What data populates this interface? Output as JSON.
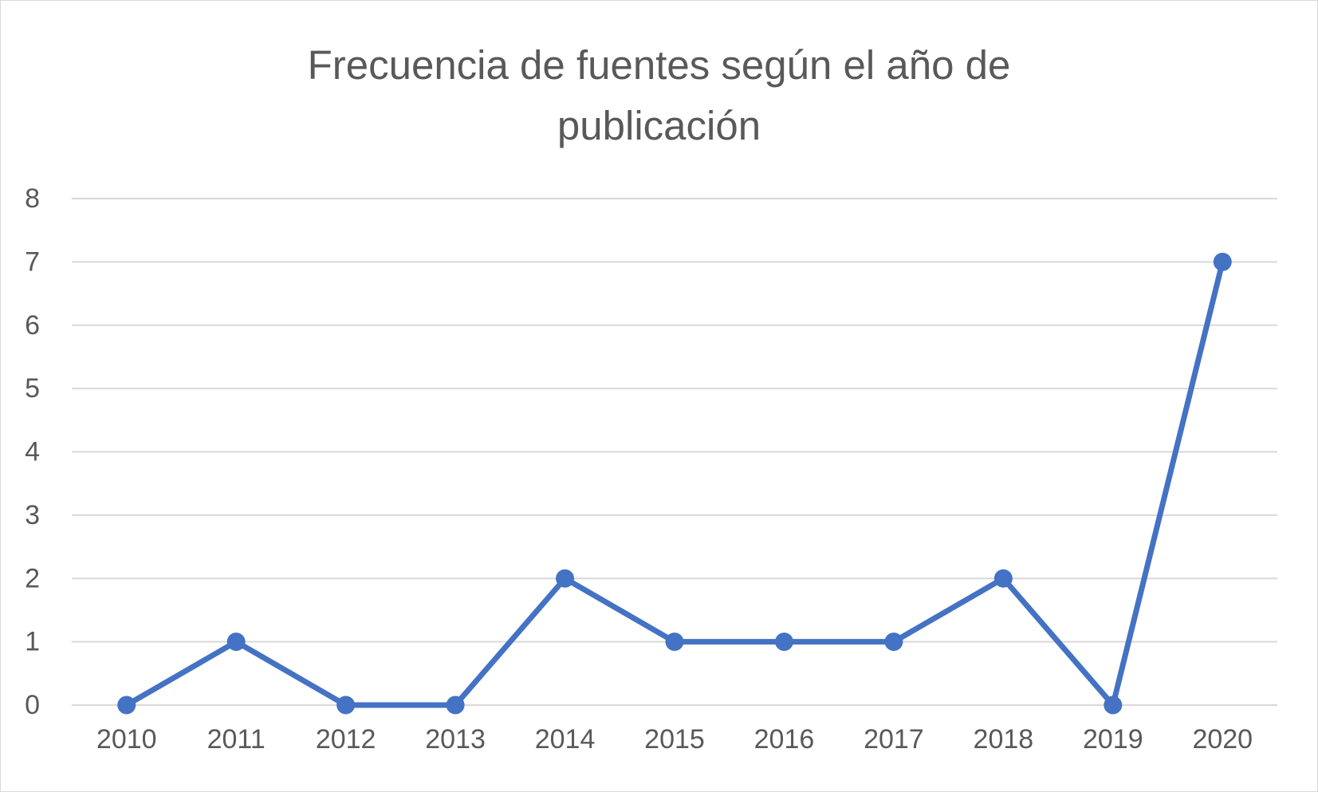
{
  "chart_data": {
    "type": "line",
    "title": "Frecuencia de fuentes según el año de publicación",
    "xlabel": "",
    "ylabel": "",
    "categories": [
      "2010",
      "2011",
      "2012",
      "2013",
      "2014",
      "2015",
      "2016",
      "2017",
      "2018",
      "2019",
      "2020"
    ],
    "series": [
      {
        "values": [
          0,
          1,
          0,
          0,
          2,
          1,
          1,
          1,
          2,
          0,
          7
        ],
        "color": "#4472c4"
      }
    ],
    "ylim": [
      0,
      8
    ],
    "yticks": [
      "0",
      "1",
      "2",
      "3",
      "4",
      "5",
      "6",
      "7",
      "8"
    ],
    "grid": true,
    "legend": "none"
  }
}
